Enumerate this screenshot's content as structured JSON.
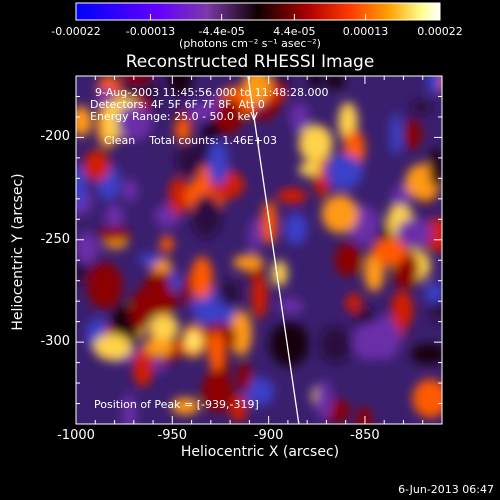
{
  "chart_data": {
    "type": "heatmap",
    "title": "Reconstructed RHESSI Image",
    "xlabel": "Heliocentric X (arcsec)",
    "ylabel": "Heliocentric Y (arcsec)",
    "x_ticks": [
      "-1000",
      "-950",
      "-900",
      "-850"
    ],
    "x_tick_values": [
      -1000,
      -950,
      -900,
      -850
    ],
    "y_ticks": [
      "-200",
      "-250",
      "-300"
    ],
    "y_tick_values": [
      -200,
      -250,
      -300
    ],
    "xlim": [
      -1000,
      -810
    ],
    "ylim": [
      -340,
      -170
    ],
    "colorbar": {
      "ticks": [
        "-0.00022",
        "-0.00013",
        "-4.4e-05",
        "4.4e-05",
        "0.00013",
        "0.00022"
      ],
      "tick_values": [
        -0.00022,
        -0.00013,
        -4.4e-05,
        4.4e-05,
        0.00013,
        0.00022
      ],
      "range": [
        -0.00022,
        0.00022
      ],
      "units": "(photons cm⁻² s⁻¹ asec⁻²)",
      "colormap": [
        "#0000ff",
        "#7f00ff",
        "#5a2a8a",
        "#1a0000",
        "#b40000",
        "#ff3a00",
        "#ff9a10",
        "#ffffa0",
        "#ffffff"
      ]
    },
    "annotations": {
      "time_range": "9-Aug-2003 11:45:56.000 to 11:48:28.000",
      "detectors": "Detectors: 4F 5F 6F 7F 8F, Att 0",
      "energy": "Energy Range: 25.0 - 50.0 keV",
      "method": "Clean",
      "total_counts": "Total counts: 1.46E+03",
      "peak": "Position of Peak = [-939,-319]"
    },
    "peak_position": [
      -939,
      -319
    ],
    "limb_line": {
      "x1": -911,
      "y1": -168,
      "x2": -884,
      "y2": -342
    }
  },
  "footer": {
    "date": "6-Jun-2013 06:47"
  }
}
